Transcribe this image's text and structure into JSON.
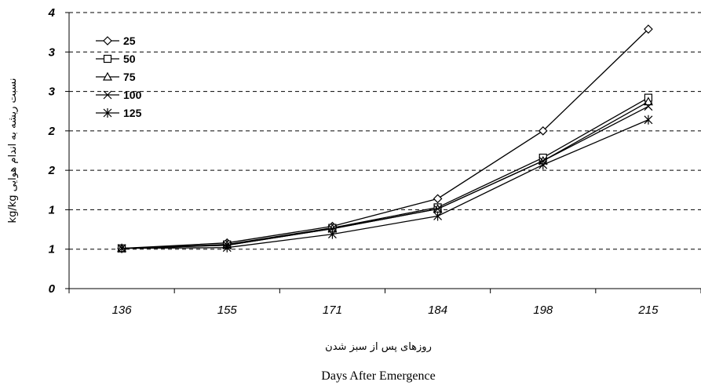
{
  "chart_data": {
    "type": "line",
    "title": "",
    "xlabel_fa": "روزهای پس از سبز شدن",
    "xlabel_en": "Days After Emergence",
    "ylabel": "kg/kg نسبت ریشه به اندام هوایی",
    "categories": [
      "136",
      "155",
      "171",
      "184",
      "198",
      "215"
    ],
    "yticks": [
      "0",
      "1",
      "1",
      "2",
      "2",
      "3",
      "3",
      "4"
    ],
    "ylim": [
      0,
      3.5
    ],
    "grid": "horizontal dashed",
    "legend_position": "top-left",
    "series": [
      {
        "name": "25",
        "marker": "diamond",
        "values": [
          0.51,
          0.58,
          0.79,
          1.14,
          2.0,
          3.29
        ]
      },
      {
        "name": "50",
        "marker": "square",
        "values": [
          0.51,
          0.56,
          0.77,
          1.03,
          1.66,
          2.42
        ]
      },
      {
        "name": "75",
        "marker": "triangle",
        "values": [
          0.51,
          0.55,
          0.76,
          1.01,
          1.62,
          2.37
        ]
      },
      {
        "name": "100",
        "marker": "x",
        "values": [
          0.51,
          0.55,
          0.76,
          1.01,
          1.62,
          2.31
        ]
      },
      {
        "name": "125",
        "marker": "star",
        "values": [
          0.51,
          0.52,
          0.69,
          0.92,
          1.57,
          2.14
        ]
      }
    ]
  }
}
